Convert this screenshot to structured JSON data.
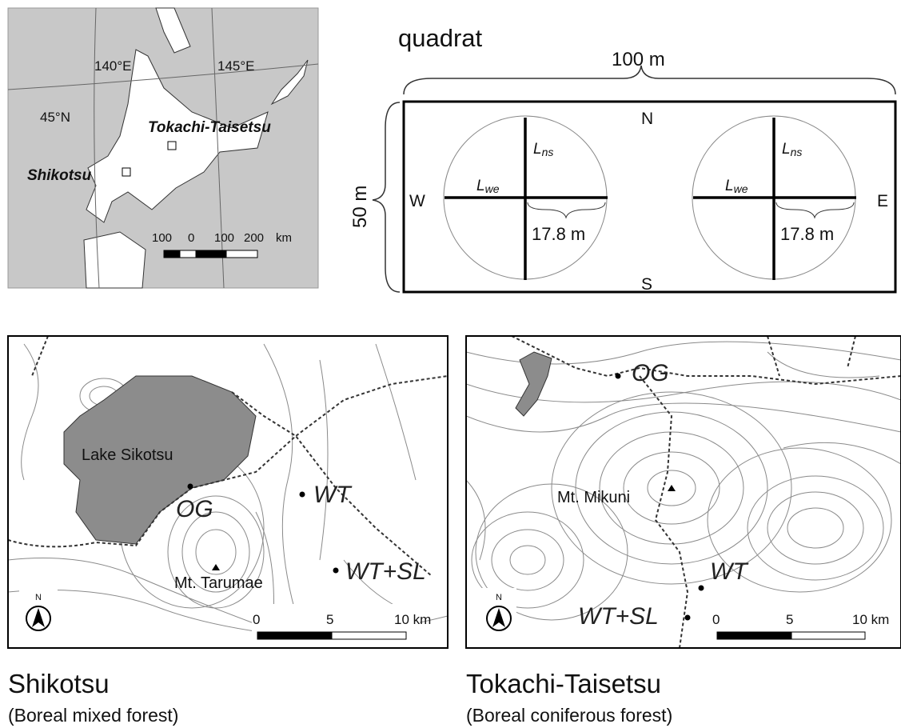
{
  "overview_map": {
    "lon_labels": [
      "140°E",
      "145°E"
    ],
    "lat_labels": [
      "45°N"
    ],
    "sites": [
      "Tokachi-Taisetsu",
      "Shikotsu"
    ],
    "scale_labels": [
      "100",
      "0",
      "100",
      "200",
      "km"
    ]
  },
  "quadrat": {
    "title": "quadrat",
    "width_label": "100 m",
    "height_label": "50 m",
    "directions": {
      "north": "N",
      "south": "S",
      "west": "W",
      "east": "E"
    },
    "plots": [
      {
        "ns": {
          "symbol": "L",
          "subscript": "ns"
        },
        "we": {
          "symbol": "L",
          "subscript": "we"
        },
        "radius_label": "17.8 m"
      },
      {
        "ns": {
          "symbol": "L",
          "subscript": "ns"
        },
        "we": {
          "symbol": "L",
          "subscript": "we"
        },
        "radius_label": "17.8 m"
      }
    ]
  },
  "site_maps": [
    {
      "name": "Shikotsu",
      "forest": "(Boreal mixed forest)",
      "labels": [
        "Lake Sikotsu",
        "Mt. Tarumae"
      ],
      "stands": [
        "OG",
        "WT",
        "WT+SL"
      ],
      "north": "N",
      "scale_labels": [
        "0",
        "5",
        "10 km"
      ]
    },
    {
      "name": "Tokachi-Taisetsu",
      "forest": "(Boreal coniferous forest)",
      "labels": [
        "Mt. Mikuni"
      ],
      "stands": [
        "OG",
        "WT",
        "WT+SL"
      ],
      "north": "N",
      "scale_labels": [
        "0",
        "5",
        "10 km"
      ]
    }
  ]
}
